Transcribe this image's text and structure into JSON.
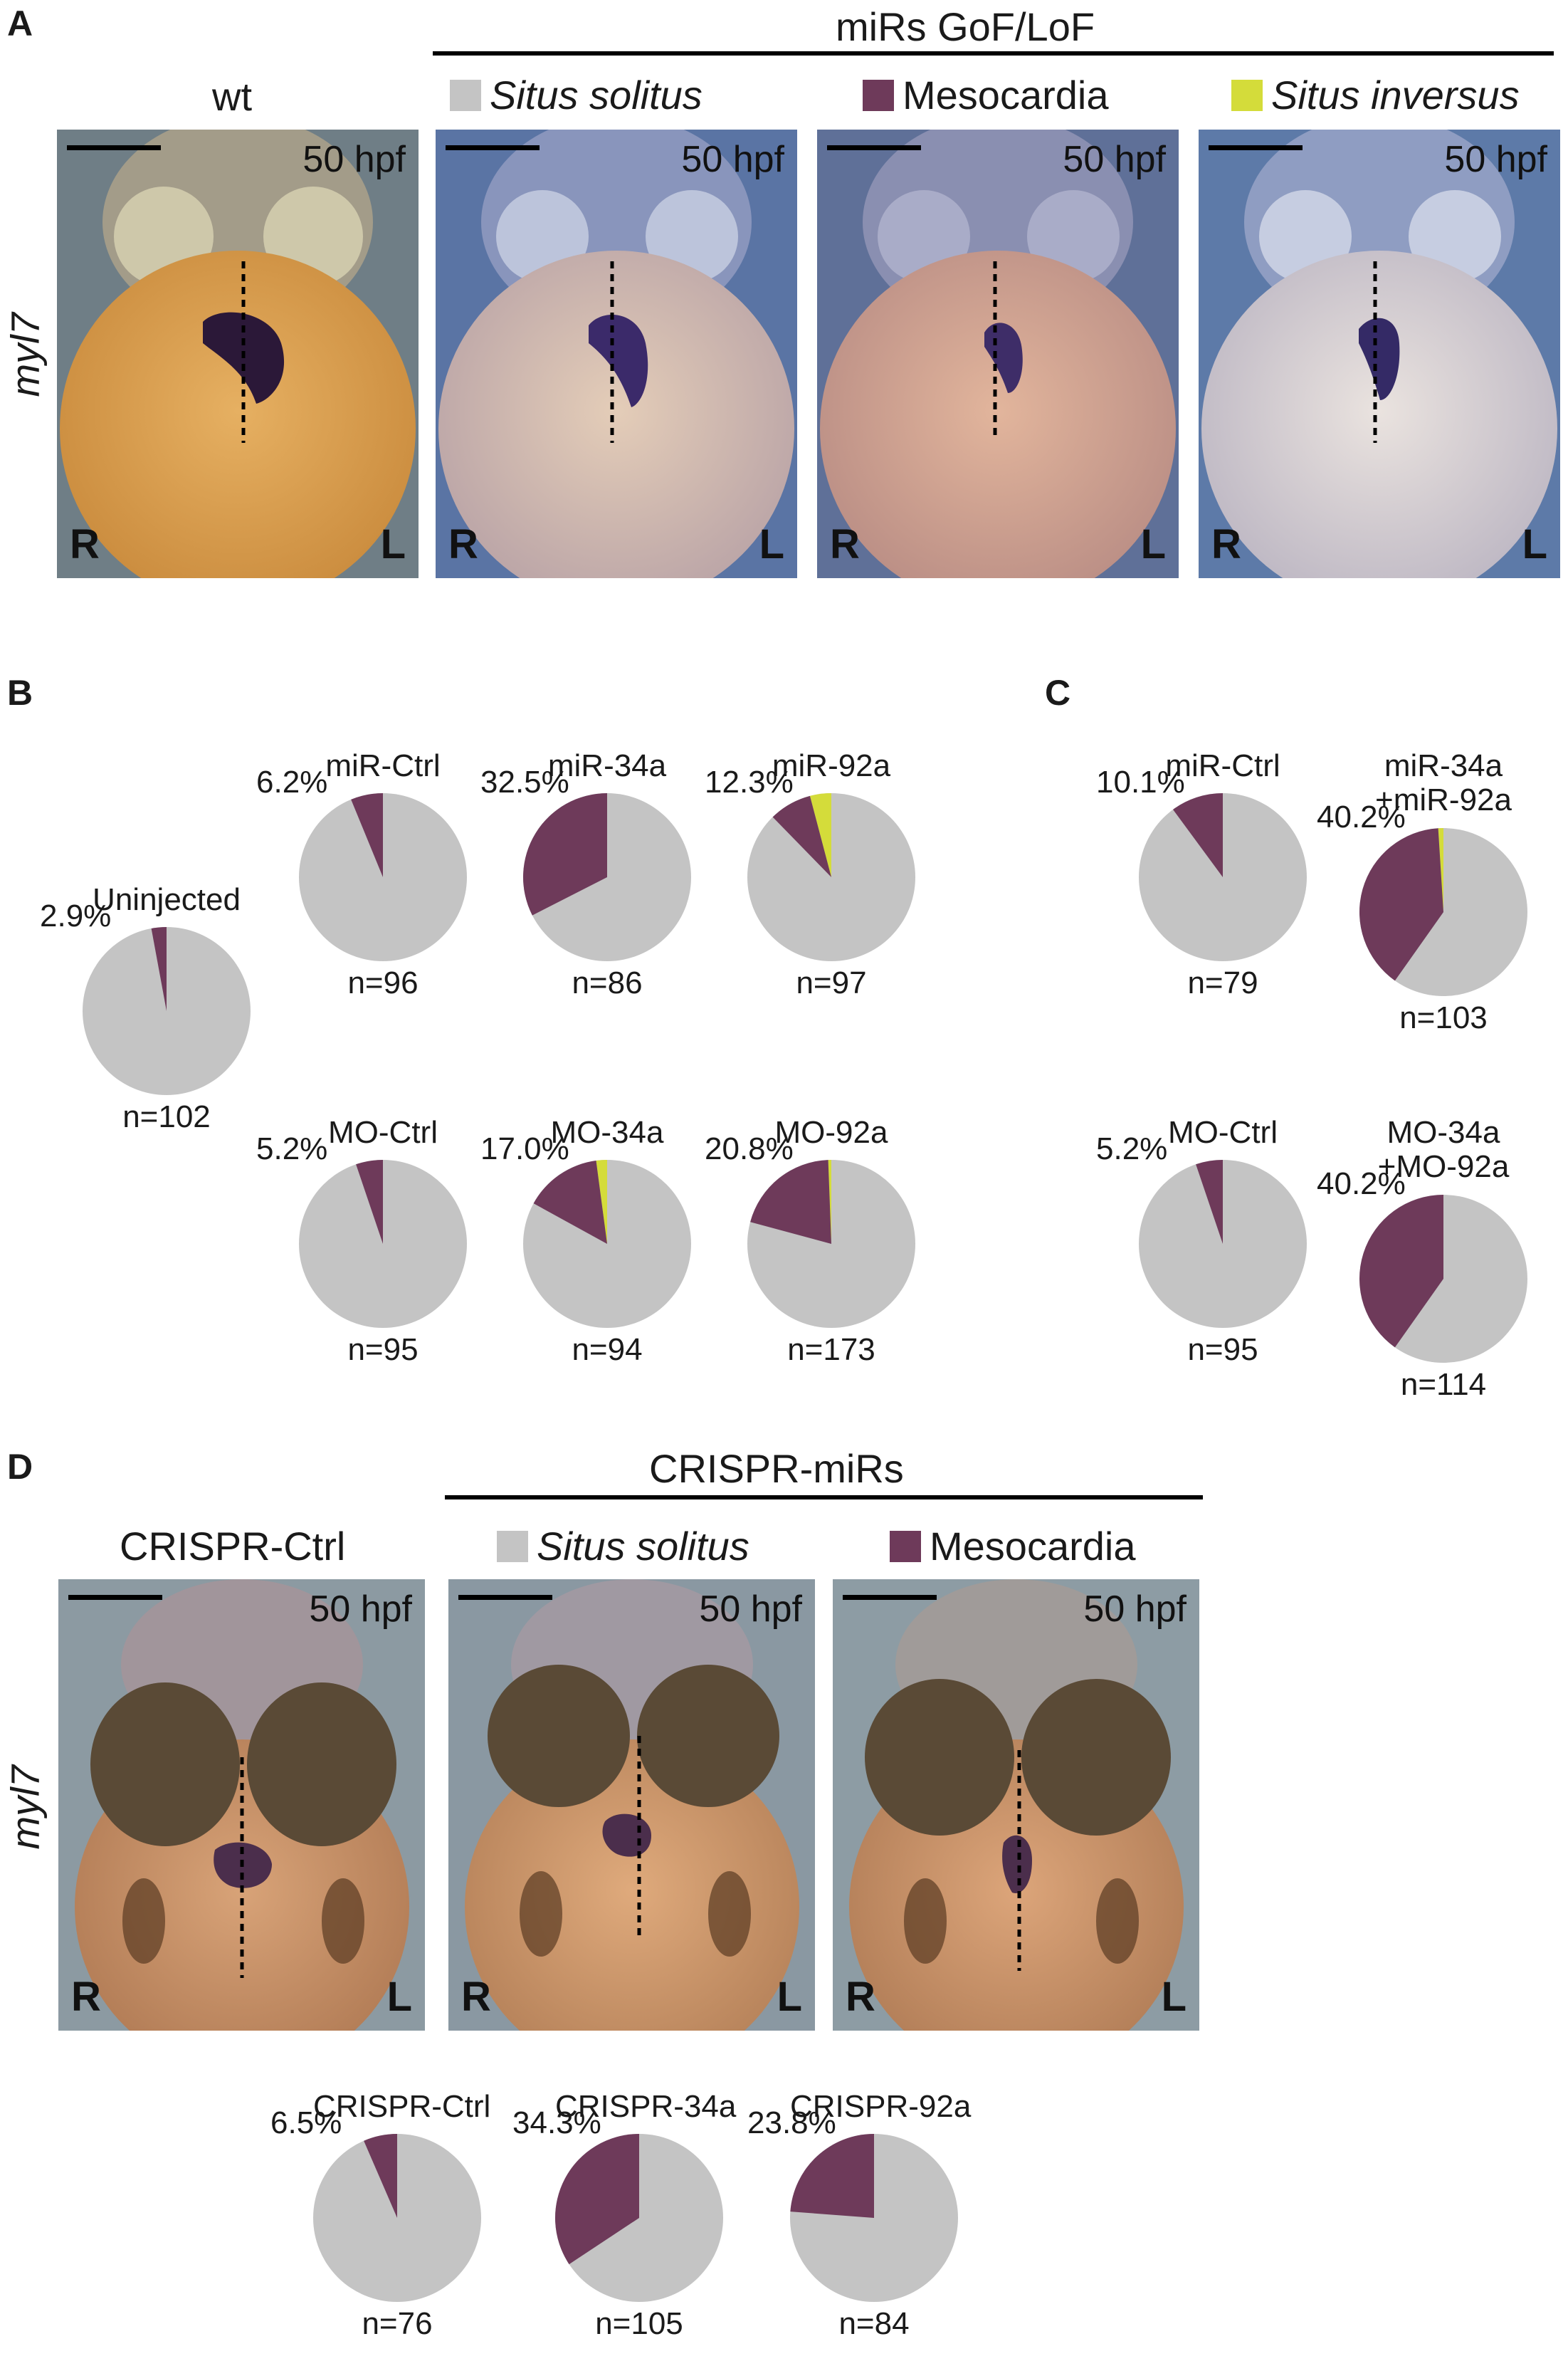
{
  "colors": {
    "situs_solitus": "#c4c4c4",
    "mesocardia": "#6e3a5a",
    "situs_inversus": "#d4dc3a"
  },
  "panel_a": {
    "letter": "A",
    "group_header": "miRs GoF/LoF",
    "gene_label": "myl7",
    "wt_label": "wt",
    "legend": [
      {
        "label": "Situs solitus",
        "italic": true,
        "color_key": "situs_solitus"
      },
      {
        "label": "Mesocardia",
        "italic": false,
        "color_key": "mesocardia"
      },
      {
        "label": "Situs inversus",
        "italic": true,
        "color_key": "situs_inversus"
      }
    ],
    "photos": [
      {
        "hpf": "50 hpf",
        "r": "R",
        "l": "L"
      },
      {
        "hpf": "50 hpf",
        "r": "R",
        "l": "L"
      },
      {
        "hpf": "50 hpf",
        "r": "R",
        "l": "L"
      },
      {
        "hpf": "50 hpf",
        "r": "R",
        "l": "L"
      }
    ]
  },
  "panel_b_letter": "B",
  "panel_c_letter": "C",
  "panel_d": {
    "letter": "D",
    "group_header": "CRISPR-miRs",
    "gene_label": "myl7",
    "ctrl_label": "CRISPR-Ctrl",
    "legend": [
      {
        "label": "Situs solitus",
        "italic": true,
        "color_key": "situs_solitus"
      },
      {
        "label": "Mesocardia",
        "italic": false,
        "color_key": "mesocardia"
      }
    ],
    "photos": [
      {
        "hpf": "50 hpf",
        "r": "R",
        "l": "L"
      },
      {
        "hpf": "50 hpf",
        "r": "R",
        "l": "L"
      },
      {
        "hpf": "50 hpf",
        "r": "R",
        "l": "L"
      }
    ]
  },
  "chart_data": [
    {
      "type": "pie",
      "title": "Uninjected",
      "pct_label": "2.9%",
      "n": "n=102",
      "categories": [
        "Situs solitus",
        "Mesocardia",
        "Situs inversus"
      ],
      "values": [
        97.1,
        2.9,
        0
      ]
    },
    {
      "type": "pie",
      "title": "miR-Ctrl",
      "pct_label": "6.2%",
      "n": "n=96",
      "categories": [
        "Situs solitus",
        "Mesocardia",
        "Situs inversus"
      ],
      "values": [
        93.8,
        6.2,
        0
      ]
    },
    {
      "type": "pie",
      "title": "miR-34a",
      "pct_label": "32.5%",
      "n": "n=86",
      "categories": [
        "Situs solitus",
        "Mesocardia",
        "Situs inversus"
      ],
      "values": [
        67.5,
        32.5,
        0
      ]
    },
    {
      "type": "pie",
      "title": "miR-92a",
      "pct_label": "12.3%",
      "n": "n=97",
      "categories": [
        "Situs solitus",
        "Mesocardia",
        "Situs inversus"
      ],
      "values": [
        87.7,
        8.2,
        4.1
      ]
    },
    {
      "type": "pie",
      "title": "MO-Ctrl",
      "pct_label": "5.2%",
      "n": "n=95",
      "categories": [
        "Situs solitus",
        "Mesocardia",
        "Situs inversus"
      ],
      "values": [
        94.8,
        5.2,
        0
      ]
    },
    {
      "type": "pie",
      "title": "MO-34a",
      "pct_label": "17.0%",
      "n": "n=94",
      "categories": [
        "Situs solitus",
        "Mesocardia",
        "Situs inversus"
      ],
      "values": [
        83.0,
        14.9,
        2.1
      ]
    },
    {
      "type": "pie",
      "title": "MO-92a",
      "pct_label": "20.8%",
      "n": "n=173",
      "categories": [
        "Situs solitus",
        "Mesocardia",
        "Situs inversus"
      ],
      "values": [
        79.2,
        20.2,
        0.6
      ]
    },
    {
      "type": "pie",
      "title": "miR-Ctrl",
      "pct_label": "10.1%",
      "n": "n=79",
      "categories": [
        "Situs solitus",
        "Mesocardia",
        "Situs inversus"
      ],
      "values": [
        89.9,
        10.1,
        0
      ]
    },
    {
      "type": "pie",
      "title": "miR-34a +miR-92a",
      "pct_label": "40.2%",
      "n": "n=103",
      "categories": [
        "Situs solitus",
        "Mesocardia",
        "Situs inversus"
      ],
      "values": [
        59.8,
        39.2,
        1.0
      ]
    },
    {
      "type": "pie",
      "title": "MO-Ctrl",
      "pct_label": "5.2%",
      "n": "n=95",
      "categories": [
        "Situs solitus",
        "Mesocardia",
        "Situs inversus"
      ],
      "values": [
        94.8,
        5.2,
        0
      ]
    },
    {
      "type": "pie",
      "title": "MO-34a +MO-92a",
      "pct_label": "40.2%",
      "n": "n=114",
      "categories": [
        "Situs solitus",
        "Mesocardia",
        "Situs inversus"
      ],
      "values": [
        59.8,
        40.2,
        0
      ]
    },
    {
      "type": "pie",
      "title": "CRISPR-Ctrl",
      "pct_label": "6.5%",
      "n": "n=76",
      "categories": [
        "Situs solitus",
        "Mesocardia"
      ],
      "values": [
        93.5,
        6.5
      ]
    },
    {
      "type": "pie",
      "title": "CRISPR-34a",
      "pct_label": "34.3%",
      "n": "n=105",
      "categories": [
        "Situs solitus",
        "Mesocardia"
      ],
      "values": [
        65.7,
        34.3
      ]
    },
    {
      "type": "pie",
      "title": "CRISPR-92a",
      "pct_label": "23.8%",
      "n": "n=84",
      "categories": [
        "Situs solitus",
        "Mesocardia"
      ],
      "values": [
        76.2,
        23.8
      ]
    }
  ]
}
